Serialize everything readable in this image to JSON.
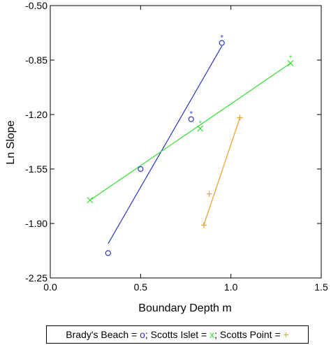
{
  "chart_data": {
    "type": "scatter",
    "xlabel": "Boundary Depth m",
    "ylabel": "Ln Slope",
    "xlim": [
      0.0,
      1.5
    ],
    "ylim": [
      -2.25,
      -0.5
    ],
    "xticks": [
      "0.0",
      "0.5",
      "1.0",
      "1.5"
    ],
    "yticks": [
      "-0.50",
      "-0.85",
      "-1.20",
      "-1.55",
      "-1.90",
      "-2.25"
    ],
    "xtick_values": [
      0.0,
      0.5,
      1.0,
      1.5
    ],
    "ytick_values": [
      -0.5,
      -0.85,
      -1.2,
      -1.55,
      -1.9,
      -2.25
    ],
    "grid": false,
    "legend_position": "bottom",
    "asterisk_label": "*",
    "series": [
      {
        "name": "Brady's Beach",
        "marker": "o",
        "color": "#2b35c8",
        "x": [
          0.32,
          0.5,
          0.78,
          0.95
        ],
        "y": [
          -2.09,
          -1.55,
          -1.23,
          -0.74
        ],
        "asterisk": [
          false,
          false,
          true,
          true
        ],
        "fit": {
          "x": [
            0.32,
            0.95
          ],
          "y": [
            -2.03,
            -0.76
          ]
        }
      },
      {
        "name": "Scotts Islet",
        "marker": "x",
        "color": "#33dd33",
        "x": [
          0.22,
          0.83,
          1.33
        ],
        "y": [
          -1.75,
          -1.29,
          -0.87
        ],
        "asterisk": [
          false,
          true,
          true
        ],
        "fit": {
          "x": [
            0.22,
            1.33
          ],
          "y": [
            -1.75,
            -0.87
          ]
        }
      },
      {
        "name": "Scotts Point",
        "marker": "+",
        "color": "#f0a020",
        "x": [
          0.85,
          0.88,
          1.05
        ],
        "y": [
          -1.91,
          -1.71,
          -1.22
        ],
        "asterisk": [
          false,
          false,
          false
        ],
        "fit": {
          "x": [
            0.85,
            1.05
          ],
          "y": [
            -1.91,
            -1.22
          ]
        }
      }
    ],
    "legend": {
      "text1": "Brady's Beach = ",
      "sym1": "o",
      "text2": "; Scotts Islet = ",
      "sym2": "x",
      "text3": "; Scotts Point = ",
      "sym3": "+",
      "text_color": "#000000"
    }
  }
}
